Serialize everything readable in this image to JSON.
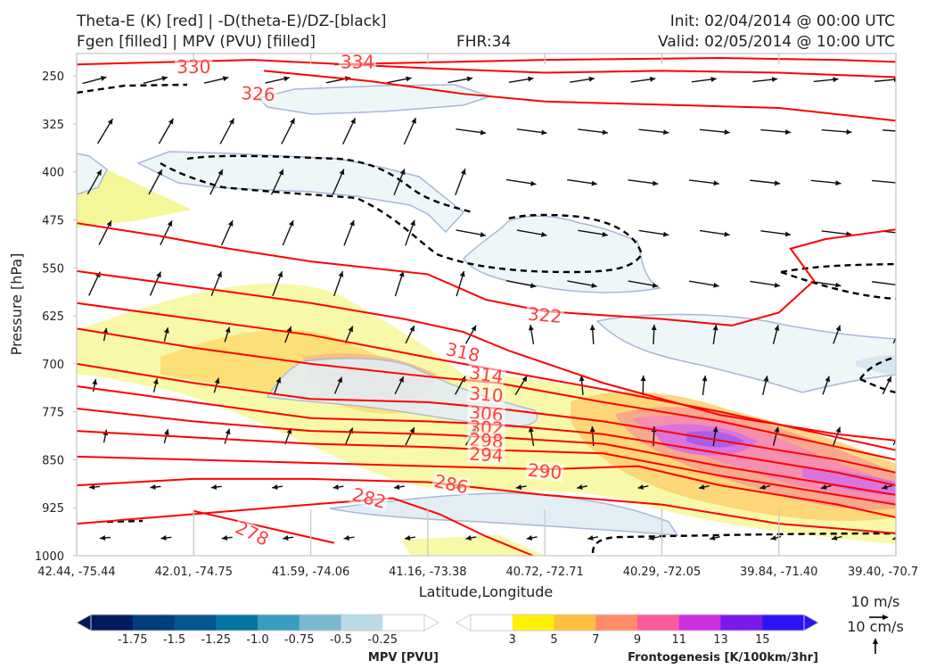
{
  "header": {
    "title_left_1": "Theta-E (K) [red] | -D(theta-E)/DZ-[black]",
    "title_left_2": "Fgen [filled] | MPV (PVU) [filled]",
    "fhr": "FHR:34",
    "init": "Init: 02/04/2014 @ 00:00 UTC",
    "valid": "Valid: 02/05/2014 @ 10:00 UTC"
  },
  "chart_data": {
    "type": "cross-section",
    "xlabel": "Latitude,Longitude",
    "ylabel": "Pressure [hPa]",
    "x_ticks": [
      "42.44, -75.44",
      "42.01, -74.75",
      "41.59, -74.06",
      "41.16, -73.38",
      "40.72, -72.71",
      "40.29, -72.05",
      "39.84, -71.40",
      "39.40, -70.7"
    ],
    "y_ticks": [
      250,
      325,
      400,
      475,
      550,
      625,
      700,
      775,
      850,
      925,
      1000
    ],
    "ylim": [
      1000,
      215
    ],
    "xlim": [
      0,
      7
    ],
    "theta_e_contours": [
      {
        "label": "334",
        "x": [
          2.2,
          4.0,
          5.5,
          6.5,
          7
        ],
        "p": [
          232,
          225,
          222,
          225,
          228
        ]
      },
      {
        "label": "330",
        "x": [
          0,
          1.5,
          3.0,
          4.0,
          5.0,
          6.0,
          7
        ],
        "p": [
          232,
          225,
          238,
          245,
          242,
          245,
          252
        ]
      },
      {
        "label": "326",
        "x": [
          1.6,
          2.5,
          3.3,
          4.0,
          5.0,
          6.0,
          7
        ],
        "p": [
          242,
          258,
          278,
          290,
          295,
          300,
          320
        ]
      },
      {
        "label": "322",
        "x": [
          0,
          0.7,
          1.3,
          2.0,
          3.0,
          3.5,
          4.0,
          5.0,
          5.6,
          6.0,
          6.3,
          6.1,
          6.4,
          6.8,
          7
        ],
        "p": [
          480,
          500,
          520,
          540,
          560,
          600,
          618,
          630,
          640,
          620,
          570,
          520,
          505,
          495,
          490
        ]
      },
      {
        "label": "318",
        "x": [
          0,
          1.0,
          2.0,
          2.8,
          3.3,
          3.7,
          4.5,
          5.5,
          6.5,
          7
        ],
        "p": [
          555,
          580,
          605,
          630,
          650,
          680,
          730,
          780,
          810,
          820
        ]
      },
      {
        "label": "314",
        "x": [
          0,
          1.0,
          2.0,
          3.0,
          3.6,
          4.5,
          5.5,
          6.5,
          7
        ],
        "p": [
          605,
          630,
          655,
          690,
          710,
          740,
          775,
          815,
          835
        ]
      },
      {
        "label": "310",
        "x": [
          0,
          1.0,
          2.0,
          3.0,
          3.6,
          4.5,
          5.5,
          6.5,
          7
        ],
        "p": [
          645,
          675,
          700,
          720,
          730,
          760,
          790,
          830,
          850
        ]
      },
      {
        "label": "306",
        "x": [
          0,
          1.0,
          2.0,
          3.0,
          3.6,
          4.5,
          5.5,
          6.5,
          7
        ],
        "p": [
          700,
          730,
          755,
          760,
          770,
          790,
          820,
          850,
          870
        ]
      },
      {
        "label": "302",
        "x": [
          0,
          1.0,
          2.0,
          3.0,
          3.6,
          4.5,
          5.5,
          6.5,
          7
        ],
        "p": [
          735,
          760,
          785,
          790,
          795,
          810,
          840,
          870,
          890
        ]
      },
      {
        "label": "298",
        "x": [
          0,
          1.0,
          2.0,
          3.0,
          3.6,
          4.5,
          5.5,
          6.5,
          7
        ],
        "p": [
          770,
          790,
          805,
          810,
          815,
          825,
          860,
          890,
          905
        ]
      },
      {
        "label": "294",
        "x": [
          0,
          1.0,
          2.0,
          3.0,
          3.6,
          4.5,
          5.5,
          6.5,
          7
        ],
        "p": [
          805,
          815,
          825,
          830,
          835,
          840,
          875,
          905,
          920
        ]
      },
      {
        "label": "290",
        "x": [
          0,
          1.0,
          2.0,
          3.0,
          4.0,
          4.8,
          5.5,
          6.5,
          7
        ],
        "p": [
          845,
          850,
          855,
          860,
          865,
          860,
          890,
          920,
          940
        ]
      },
      {
        "label": "286",
        "x": [
          0,
          1.0,
          2.0,
          3.0,
          4.0,
          5.0,
          6.0,
          7
        ],
        "p": [
          890,
          880,
          880,
          885,
          905,
          920,
          950,
          965
        ]
      },
      {
        "label": "282",
        "x": [
          0,
          1.0,
          2.0,
          2.7,
          3.1,
          3.5,
          3.9
        ],
        "p": [
          950,
          935,
          920,
          910,
          935,
          970,
          1000
        ]
      },
      {
        "label": "278",
        "x": [
          1.0,
          1.6,
          2.2
        ],
        "p": [
          930,
          955,
          980
        ]
      }
    ],
    "mpv_colorbar": {
      "title": "MPV [PVU]",
      "ticks": [
        "-1.75",
        "-1.5",
        "-1.25",
        "-1.0",
        "-0.75",
        "-0.5",
        "-0.25"
      ],
      "colors": [
        "#001a5e",
        "#023e7d",
        "#03568f",
        "#05769f",
        "#3a9dbf",
        "#7ab8d2",
        "#b8dbe6",
        "#ffffff"
      ]
    },
    "fgen_colorbar": {
      "title": "Frontogenesis [K/100km/3hr]",
      "ticks": [
        "3",
        "5",
        "7",
        "9",
        "11",
        "13",
        "15"
      ],
      "colors": [
        "#ffffff",
        "#fff200",
        "#ffbf40",
        "#ff8c66",
        "#ff5aa0",
        "#cc2ee0",
        "#7a1ae8",
        "#2a14f5"
      ]
    },
    "wind_key": {
      "u_label": "10 m/s",
      "w_label": "10 cm/s"
    },
    "colors": {
      "theta_e": "#ff0000",
      "dtheta": "#000000",
      "mpv_outline": "#a8b8d8"
    }
  }
}
